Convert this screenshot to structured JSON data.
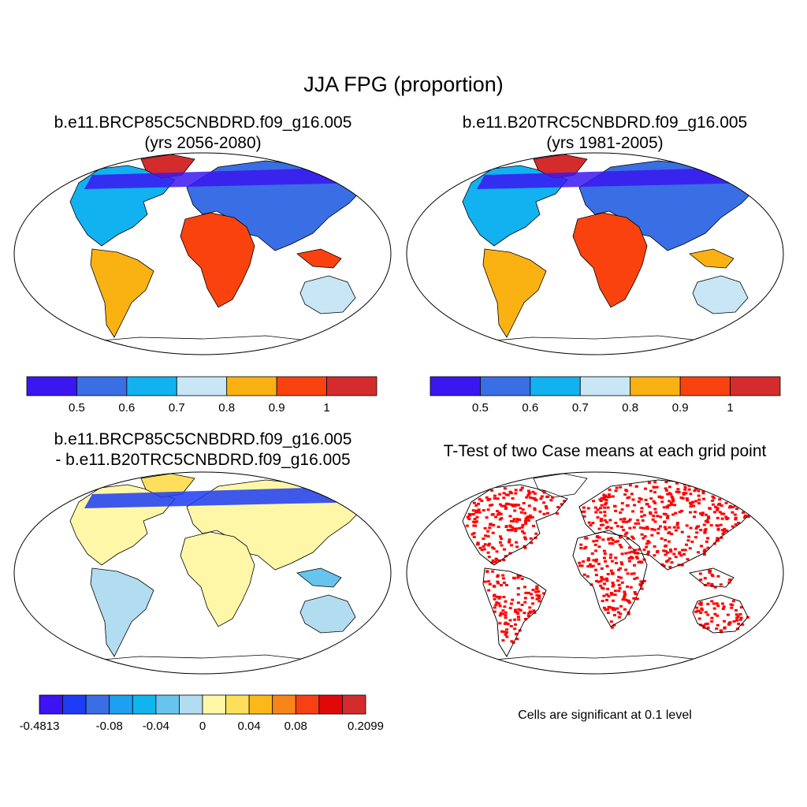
{
  "title": "JJA FPG (proportion)",
  "panels": [
    {
      "id": "future",
      "title_lines": [
        "b.e11.BRCP85C5CNBDRD.f09_g16.005",
        "(yrs 2056-2080)"
      ]
    },
    {
      "id": "historical",
      "title_lines": [
        "b.e11.B20TRC5CNBDRD.f09_g16.005",
        "(yrs 1981-2005)"
      ]
    },
    {
      "id": "difference",
      "title_lines": [
        "b.e11.BRCP85C5CNBDRD.f09_g16.005",
        "- b.e11.B20TRC5CNBDRD.f09_g16.005"
      ]
    },
    {
      "id": "ttest",
      "title_lines": [
        "T-Test of two Case means at each grid point"
      ]
    }
  ],
  "colorbar_main": {
    "colors": [
      "#3a17f0",
      "#3a6ee4",
      "#12b2f0",
      "#c8e6f6",
      "#fab213",
      "#f9420d",
      "#d42c2c"
    ],
    "labels": [
      "0.5",
      "0.6",
      "0.7",
      "0.8",
      "0.9",
      "1"
    ]
  },
  "colorbar_diff": {
    "colors": [
      "#3c13f2",
      "#1c3cf5",
      "#3a6ee4",
      "#1ea0f0",
      "#10b4ee",
      "#66c4ee",
      "#b2dcf0",
      "#fff7a8",
      "#fddf5c",
      "#fbb818",
      "#f98418",
      "#f93f14",
      "#e20808",
      "#d42c2c"
    ],
    "labels": [
      "-0.4813",
      "-0.08",
      "-0.04",
      "0",
      "0.04",
      "0.08",
      "0.2099"
    ]
  },
  "ttest_color": "#ff0000",
  "note": "Cells are significant at 0.1 level"
}
